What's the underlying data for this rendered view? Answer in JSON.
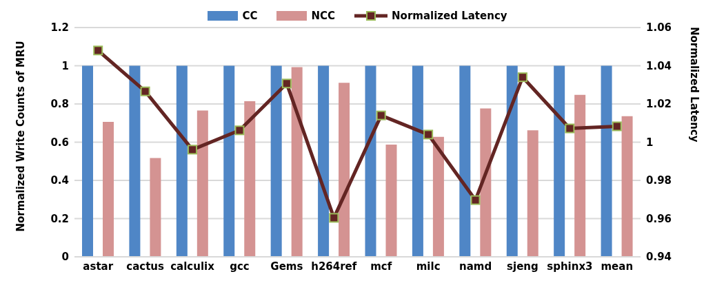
{
  "chart_data": {
    "type": "bar",
    "ylabel": "Normalized Write Counts of MRU",
    "y2label": "Normalized Latency",
    "categories": [
      "astar",
      "cactus",
      "calculix",
      "gcc",
      "Gems",
      "h264ref",
      "mcf",
      "milc",
      "namd",
      "sjeng",
      "sphinx3",
      "mean"
    ],
    "series": [
      {
        "name": "CC",
        "color": "#4f86c6",
        "values": [
          1,
          1,
          1,
          1,
          1,
          1,
          1,
          1,
          1,
          1,
          1,
          1
        ]
      },
      {
        "name": "NCC",
        "color": "#d49392",
        "values": [
          0.706,
          0.517,
          0.766,
          0.814,
          0.993,
          0.911,
          0.587,
          0.628,
          0.777,
          0.662,
          0.848,
          0.736
        ]
      },
      {
        "name": "Normalized Latency",
        "type": "line",
        "axis": "y2",
        "color": "#632523",
        "marker": "square",
        "values": [
          1.048,
          1.0266,
          0.9961,
          1.0062,
          1.0307,
          0.9604,
          1.014,
          1.004,
          0.9697,
          1.034,
          1.0072,
          1.0083
        ]
      }
    ],
    "ylim": [
      0,
      1.2
    ],
    "yticks": [
      0,
      0.2,
      0.4,
      0.6,
      0.8,
      1,
      1.2
    ],
    "y2lim": [
      0.94,
      1.06
    ],
    "y2ticks": [
      0.94,
      0.96,
      0.98,
      1,
      1.02,
      1.04,
      1.06
    ],
    "grid": "y",
    "legend": "top"
  }
}
